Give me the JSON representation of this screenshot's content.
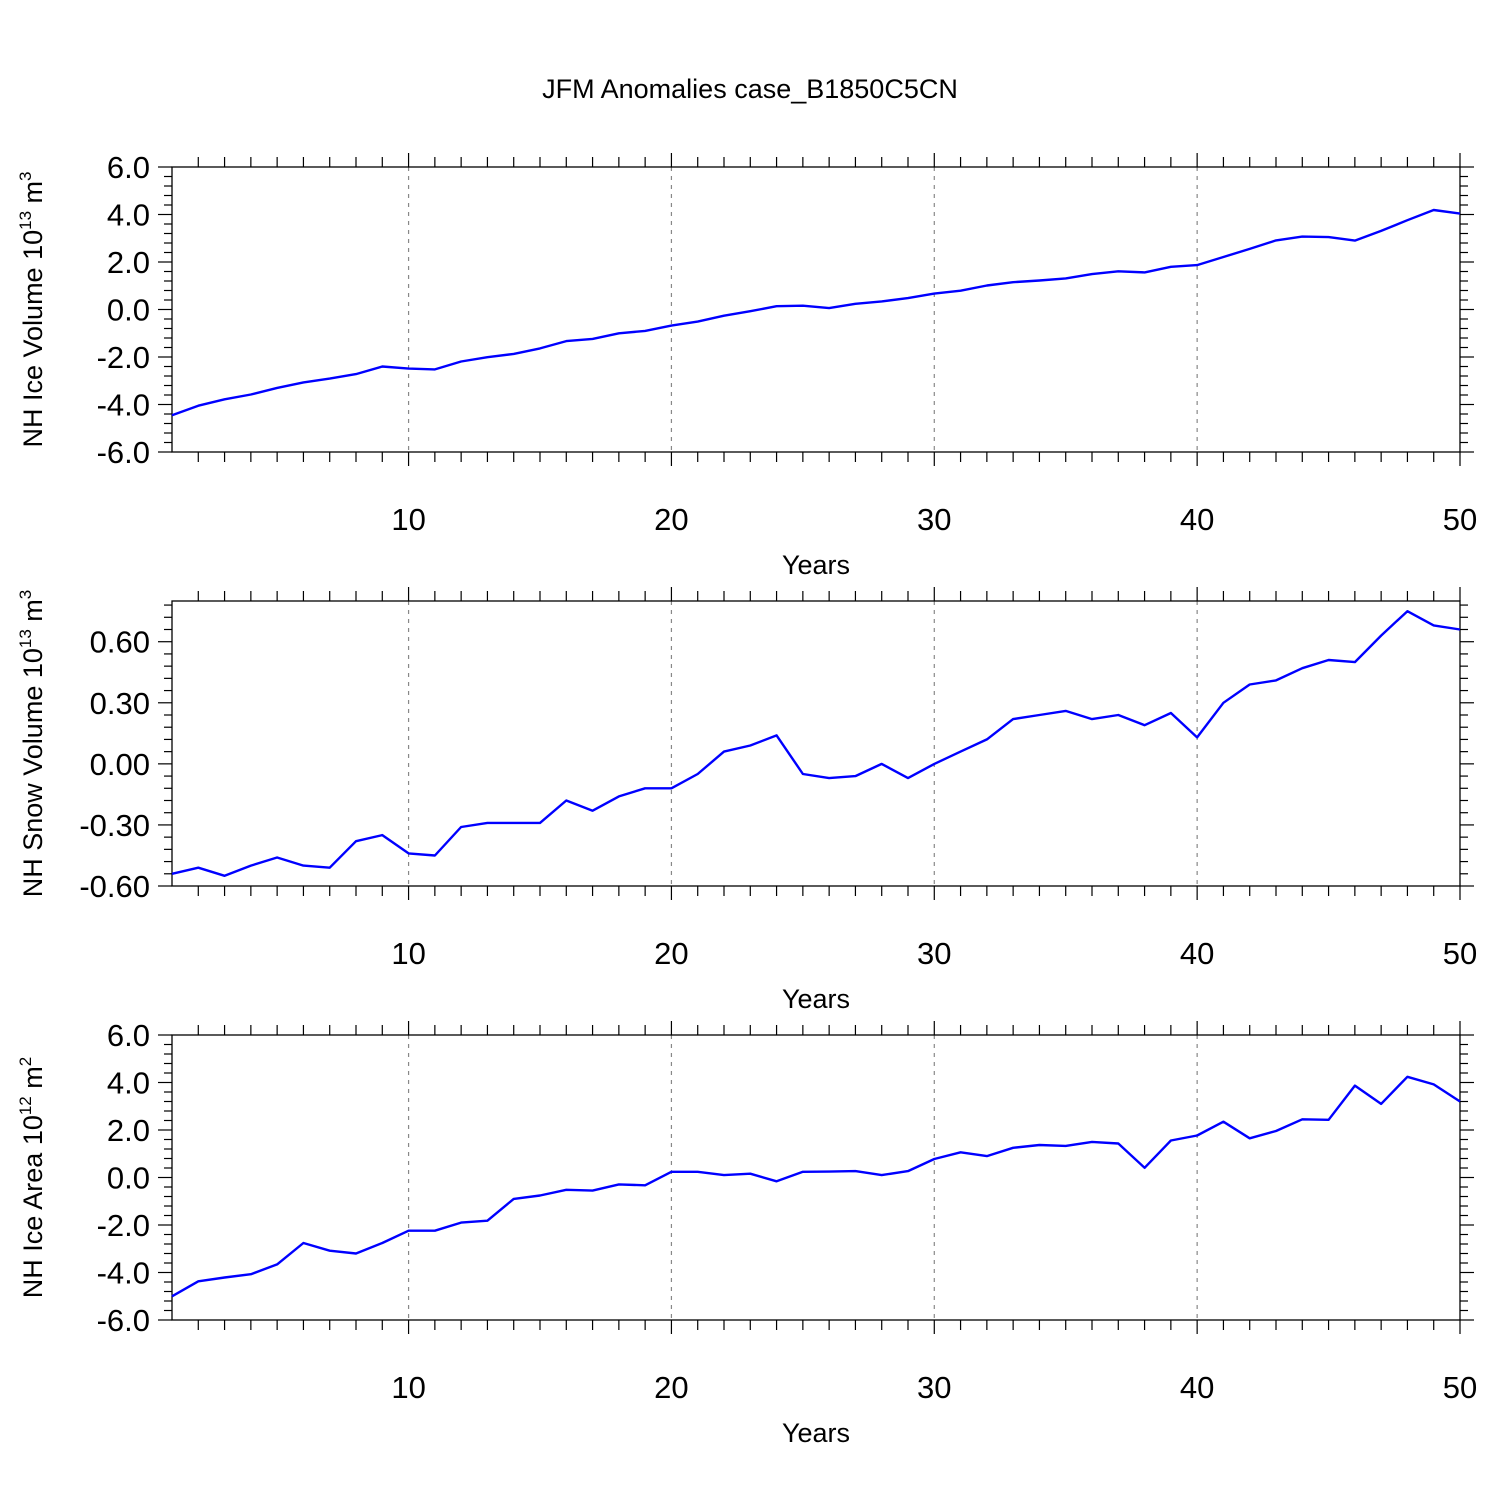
{
  "title": "JFM Anomalies case_B1850C5CN",
  "colors": {
    "line": "#0000ff",
    "axis": "#000000",
    "grid": "#888888"
  },
  "chart_data": [
    {
      "type": "line",
      "title": "JFM Anomalies case_B1850C5CN",
      "xlabel": "Years",
      "ylabel": "NH Ice Volume",
      "ylabel_unit": "10",
      "ylabel_exp": "13",
      "ylabel_tail": " m",
      "ylabel_tail_exp": "3",
      "xlim": [
        1,
        50
      ],
      "ylim": [
        -6,
        6
      ],
      "xticks": [
        10,
        20,
        30,
        40,
        50
      ],
      "yticks": [
        -6,
        -4,
        -2,
        0,
        2,
        4,
        6
      ],
      "ytick_labels": [
        "-6.0",
        "-4.0",
        "-2.0",
        "0.0",
        "2.0",
        "4.0",
        "6.0"
      ],
      "grid": "vertical dashed at major x ticks",
      "series": [
        {
          "x": [
            1,
            2,
            3,
            4,
            5,
            6,
            7,
            8,
            9,
            10,
            11,
            12,
            13,
            14,
            15,
            16,
            17,
            18,
            19,
            20,
            21,
            22,
            23,
            24,
            25,
            26,
            27,
            28,
            29,
            30,
            31,
            32,
            33,
            34,
            35,
            36,
            37,
            38,
            39,
            40,
            41,
            42,
            43,
            44,
            45,
            46,
            47,
            48,
            49,
            50
          ],
          "values": [
            -4.45,
            -4.05,
            -3.78,
            -3.58,
            -3.3,
            -3.07,
            -2.91,
            -2.72,
            -2.4,
            -2.49,
            -2.52,
            -2.19,
            -2.01,
            -1.87,
            -1.64,
            -1.33,
            -1.24,
            -1.0,
            -0.9,
            -0.68,
            -0.51,
            -0.26,
            -0.07,
            0.14,
            0.16,
            0.06,
            0.24,
            0.34,
            0.48,
            0.67,
            0.79,
            1.01,
            1.15,
            1.22,
            1.31,
            1.49,
            1.61,
            1.56,
            1.8,
            1.87,
            2.21,
            2.55,
            2.91,
            3.07,
            3.05,
            2.9,
            3.31,
            3.76,
            4.19,
            4.04
          ]
        }
      ]
    },
    {
      "type": "line",
      "xlabel": "Years",
      "ylabel": "NH Snow Volume",
      "ylabel_unit": "10",
      "ylabel_exp": "13",
      "ylabel_tail": " m",
      "ylabel_tail_exp": "3",
      "xlim": [
        1,
        50
      ],
      "ylim": [
        -0.6,
        0.8
      ],
      "xticks": [
        10,
        20,
        30,
        40,
        50
      ],
      "yticks": [
        -0.6,
        -0.3,
        0.0,
        0.3,
        0.6
      ],
      "ytick_labels": [
        "-0.60",
        "-0.30",
        "0.00",
        "0.30",
        "0.60"
      ],
      "grid": "vertical dashed at major x ticks",
      "series": [
        {
          "x": [
            1,
            2,
            3,
            4,
            5,
            6,
            7,
            8,
            9,
            10,
            11,
            12,
            13,
            14,
            15,
            16,
            17,
            18,
            19,
            20,
            21,
            22,
            23,
            24,
            25,
            26,
            27,
            28,
            29,
            30,
            31,
            32,
            33,
            34,
            35,
            36,
            37,
            38,
            39,
            40,
            41,
            42,
            43,
            44,
            45,
            46,
            47,
            48,
            49,
            50
          ],
          "values": [
            -0.54,
            -0.51,
            -0.55,
            -0.5,
            -0.46,
            -0.5,
            -0.51,
            -0.38,
            -0.35,
            -0.44,
            -0.45,
            -0.31,
            -0.29,
            -0.29,
            -0.29,
            -0.18,
            -0.23,
            -0.16,
            -0.12,
            -0.12,
            -0.05,
            0.06,
            0.09,
            0.14,
            -0.05,
            -0.07,
            -0.06,
            -0.0,
            -0.07,
            -0.0,
            0.06,
            0.12,
            0.22,
            0.24,
            0.26,
            0.22,
            0.24,
            0.19,
            0.25,
            0.13,
            0.3,
            0.39,
            0.41,
            0.47,
            0.51,
            0.5,
            0.63,
            0.75,
            0.68,
            0.66
          ]
        }
      ]
    },
    {
      "type": "line",
      "xlabel": "Years",
      "ylabel": "NH Ice Area",
      "ylabel_unit": "10",
      "ylabel_exp": "12",
      "ylabel_tail": " m",
      "ylabel_tail_exp": "2",
      "xlim": [
        1,
        50
      ],
      "ylim": [
        -6,
        6
      ],
      "xticks": [
        10,
        20,
        30,
        40,
        50
      ],
      "yticks": [
        -6,
        -4,
        -2,
        0,
        2,
        4,
        6
      ],
      "ytick_labels": [
        "-6.0",
        "-4.0",
        "-2.0",
        "0.0",
        "2.0",
        "4.0",
        "6.0"
      ],
      "grid": "vertical dashed at major x ticks",
      "series": [
        {
          "x": [
            1,
            2,
            3,
            4,
            5,
            6,
            7,
            8,
            9,
            10,
            11,
            12,
            13,
            14,
            15,
            16,
            17,
            18,
            19,
            20,
            21,
            22,
            23,
            24,
            25,
            26,
            27,
            28,
            29,
            30,
            31,
            32,
            33,
            34,
            35,
            36,
            37,
            38,
            39,
            40,
            41,
            42,
            43,
            44,
            45,
            46,
            47,
            48,
            49,
            50
          ],
          "values": [
            -5.0,
            -4.37,
            -4.21,
            -4.07,
            -3.66,
            -2.76,
            -3.08,
            -3.2,
            -2.76,
            -2.24,
            -2.24,
            -1.9,
            -1.82,
            -0.9,
            -0.76,
            -0.52,
            -0.55,
            -0.29,
            -0.33,
            0.24,
            0.24,
            0.1,
            0.16,
            -0.16,
            0.24,
            0.25,
            0.27,
            0.1,
            0.27,
            0.78,
            1.06,
            0.9,
            1.25,
            1.37,
            1.33,
            1.5,
            1.43,
            0.41,
            1.56,
            1.77,
            2.35,
            1.65,
            1.96,
            2.45,
            2.43,
            3.87,
            3.1,
            4.24,
            3.92,
            3.2
          ]
        }
      ]
    }
  ]
}
